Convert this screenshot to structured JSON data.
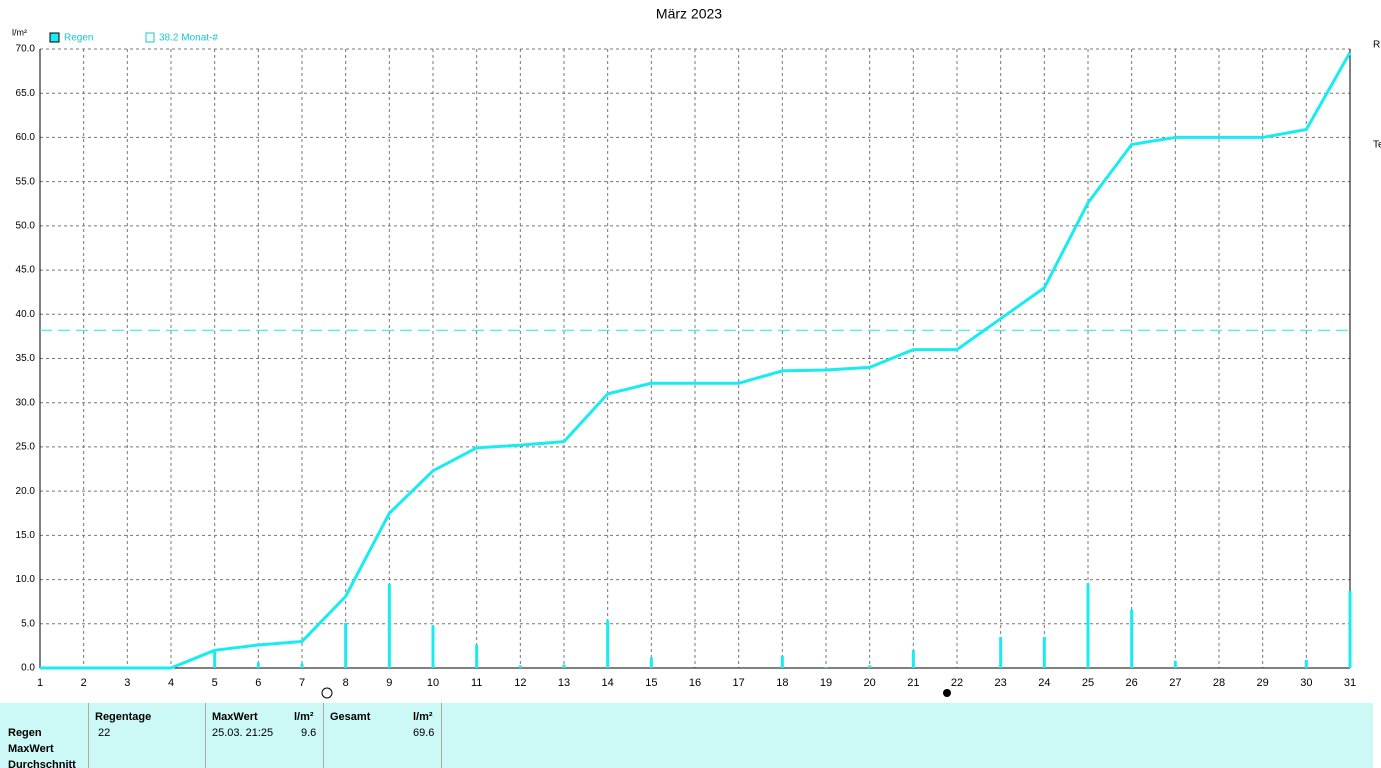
{
  "chart_data": {
    "type": "bar-line",
    "title": "März 2023",
    "y_label": "l/m²",
    "xlim": [
      1,
      31
    ],
    "xticks": [
      1,
      2,
      3,
      4,
      5,
      6,
      7,
      8,
      9,
      10,
      11,
      12,
      13,
      14,
      15,
      16,
      17,
      18,
      19,
      20,
      21,
      22,
      23,
      24,
      25,
      26,
      27,
      28,
      29,
      30,
      31
    ],
    "x": [
      1,
      2,
      3,
      4,
      5,
      6,
      7,
      8,
      9,
      10,
      11,
      12,
      13,
      14,
      15,
      16,
      17,
      18,
      19,
      20,
      21,
      22,
      23,
      24,
      25,
      26,
      27,
      28,
      29,
      30,
      31
    ],
    "ylim": [
      0,
      70
    ],
    "yticks": [
      {
        "value": 0,
        "label": "0.0"
      },
      {
        "value": 5,
        "label": "5.0"
      },
      {
        "value": 10,
        "label": "10.0"
      },
      {
        "value": 15,
        "label": "15.0"
      },
      {
        "value": 20,
        "label": "20.0"
      },
      {
        "value": 25,
        "label": "25.0"
      },
      {
        "value": 30,
        "label": "30.0"
      },
      {
        "value": 35,
        "label": "35.0"
      },
      {
        "value": 40,
        "label": "40.0"
      },
      {
        "value": 45,
        "label": "45.0"
      },
      {
        "value": 50,
        "label": "50.0"
      },
      {
        "value": 55,
        "label": "55.0"
      },
      {
        "value": 60,
        "label": "60.0"
      },
      {
        "value": 65,
        "label": "65.0"
      },
      {
        "value": 70,
        "label": "70.0"
      }
    ],
    "grid": true,
    "series": [
      {
        "name": "Regen",
        "color": "#18ecf0",
        "values": [
          0,
          0,
          0,
          0,
          2.0,
          0.6,
          0.5,
          5.1,
          9.5,
          4.8,
          2.6,
          0.3,
          0.4,
          5.4,
          1.2,
          0,
          0,
          1.4,
          0.1,
          0.3,
          2.0,
          0,
          3.5,
          3.5,
          9.6,
          6.6,
          0.8,
          0,
          0,
          0.9,
          8.7
        ]
      }
    ],
    "cumulative_values": [
      0,
      0,
      0,
      0,
      2.0,
      2.6,
      3.0,
      8.1,
      17.5,
      22.3,
      24.9,
      25.2,
      25.6,
      31.0,
      32.2,
      32.2,
      32.2,
      33.6,
      33.7,
      34.0,
      36.0,
      36.0,
      39.5,
      43.0,
      52.6,
      59.2,
      60.0,
      60.0,
      60.0,
      60.9,
      69.6
    ],
    "reference_line": 38.2,
    "reference_label": "38.2 Monat-#",
    "side_labels": [
      "R",
      "Te"
    ]
  },
  "table": {
    "row_labels": [
      "Regen",
      "MaxWert",
      "Durchschnitt"
    ],
    "headers": [
      "Regentage",
      "MaxWert",
      "l/m²",
      "Gesamt",
      "l/m²"
    ],
    "values": [
      "22",
      "25.03. 21:25",
      "9.6",
      "69.6"
    ]
  }
}
